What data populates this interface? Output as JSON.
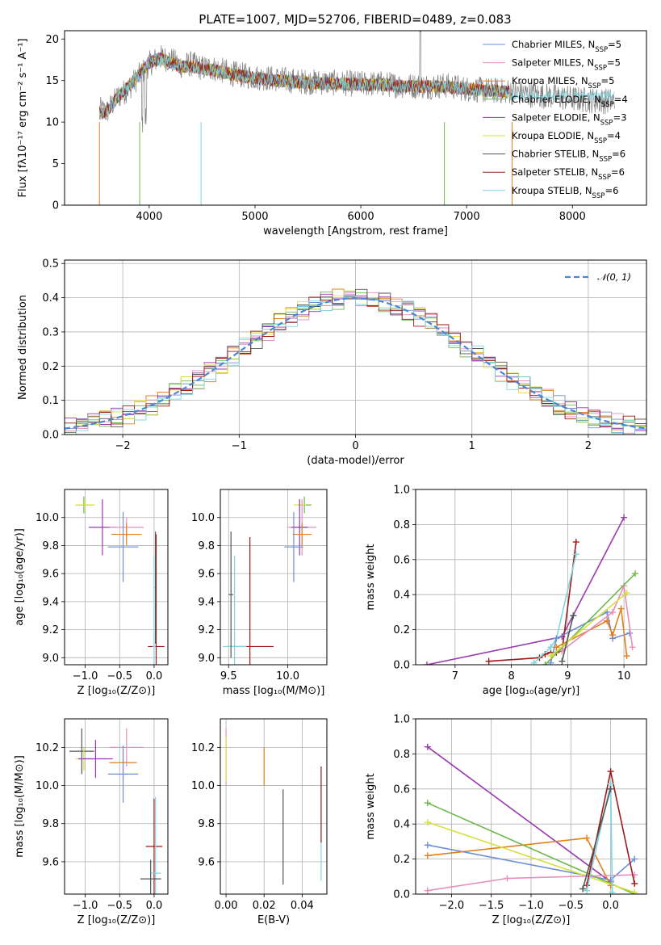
{
  "figure": {
    "title": "PLATE=1007, MJD=52706, FIBERID=0489, z=0.083"
  },
  "chart_data": [
    {
      "id": "spectrum",
      "type": "line",
      "title": "PLATE=1007, MJD=52706, FIBERID=0489, z=0.083",
      "xlabel": "wavelength [Angstrom, rest frame]",
      "ylabel": "Flux [fλ10⁻¹⁷ erg cm⁻² s⁻¹ A⁻¹]",
      "xlim": [
        3200,
        8700
      ],
      "ylim": [
        0,
        21
      ],
      "xticks": [
        4000,
        5000,
        6000,
        7000,
        8000
      ],
      "yticks": [
        0,
        5,
        10,
        15,
        20
      ],
      "grid": false,
      "legend_placement": "top-right",
      "data_spectrum": {
        "x": [
          3530,
          3600,
          3700,
          3800,
          3900,
          4000,
          4100,
          4200,
          4300,
          4400,
          4500,
          4600,
          4800,
          5000,
          5200,
          5400,
          5600,
          5800,
          6000,
          6200,
          6400,
          6600,
          6800,
          7000,
          7200,
          7400,
          7600,
          7800,
          8000,
          8200,
          8400
        ],
        "y": [
          11.5,
          11.2,
          13.0,
          14.0,
          15.5,
          17.0,
          17.8,
          17.5,
          16.8,
          17.0,
          16.5,
          16.5,
          15.8,
          15.4,
          15.2,
          14.9,
          14.8,
          14.7,
          14.6,
          14.6,
          14.4,
          14.3,
          14.4,
          14.0,
          13.8,
          13.7,
          13.3,
          13.1,
          12.8,
          12.6,
          12.5
        ]
      },
      "model_curve": {
        "x": [
          3530,
          3600,
          3700,
          3800,
          3900,
          4000,
          4100,
          4200,
          4300,
          4400,
          4500,
          4600,
          4800,
          5000,
          5200,
          5400,
          5600,
          5800,
          6000,
          6200,
          6400,
          6600,
          6800,
          7000,
          7200,
          7400
        ],
        "y": [
          11.0,
          11.3,
          13.0,
          14.2,
          15.6,
          17.2,
          17.6,
          17.2,
          16.6,
          16.7,
          16.4,
          16.3,
          15.7,
          15.3,
          15.0,
          14.8,
          14.7,
          14.6,
          14.5,
          14.5,
          14.3,
          14.3,
          14.3,
          14.0,
          13.8,
          13.6
        ]
      },
      "series": [
        {
          "name": "Chabrier MILES, N",
          "sub": "SSP",
          "suffix": "=5",
          "color": "#6e8fd8"
        },
        {
          "name": "Salpeter MILES, N",
          "sub": "SSP",
          "suffix": "=5",
          "color": "#e58fbb"
        },
        {
          "name": "Kroupa MILES, N",
          "sub": "SSP",
          "suffix": "=5",
          "color": "#e0801e"
        },
        {
          "name": "Chabrier ELODIE, N",
          "sub": "SSP",
          "suffix": "=4",
          "color": "#6db84a"
        },
        {
          "name": "Salpeter ELODIE, N",
          "sub": "SSP",
          "suffix": "=3",
          "color": "#9a3aaf"
        },
        {
          "name": "Kroupa ELODIE, N",
          "sub": "SSP",
          "suffix": "=4",
          "color": "#d8e03a"
        },
        {
          "name": "Chabrier STELIB, N",
          "sub": "SSP",
          "suffix": "=6",
          "color": "#555555"
        },
        {
          "name": "Salpeter STELIB, N",
          "sub": "SSP",
          "suffix": "=6",
          "color": "#a01818"
        },
        {
          "name": "Kroupa STELIB, N",
          "sub": "SSP",
          "suffix": "=6",
          "color": "#7fd6e0"
        }
      ]
    },
    {
      "id": "residuals",
      "type": "line",
      "xlabel": "(data-model)/error",
      "ylabel": "Normed distribution",
      "xlim": [
        -2.5,
        2.5
      ],
      "ylim": [
        0,
        0.51
      ],
      "xticks": [
        -2,
        -1,
        0,
        1,
        2
      ],
      "yticks": [
        0.0,
        0.1,
        0.2,
        0.3,
        0.4,
        0.5
      ],
      "grid": true,
      "legend_placement": "top-right",
      "reference": {
        "name": "𝒩(0, 1)",
        "color": "#4a86d8"
      }
    },
    {
      "id": "age_vs_z",
      "type": "scatter",
      "xlabel": "Z [log₁₀(Z/Z⊙)]",
      "ylabel": "age  [log₁₀(age/yr)]",
      "xlim": [
        -1.3,
        0.2
      ],
      "ylim": [
        8.95,
        10.2
      ],
      "xticks": [
        -1.0,
        -0.5,
        0.0
      ],
      "yticks": [
        9.0,
        9.2,
        9.4,
        9.6,
        9.8,
        10.0
      ],
      "grid": true,
      "points": [
        {
          "x": -1.02,
          "y": 10.09,
          "xerr": 0.12,
          "yerr": 0.06,
          "color": "#6db84a"
        },
        {
          "x": -1.0,
          "y": 10.09,
          "xerr": 0.14,
          "yerr": 0.04,
          "color": "#d8e03a"
        },
        {
          "x": -0.75,
          "y": 9.93,
          "xerr": 0.2,
          "yerr": 0.2,
          "color": "#9a3aaf"
        },
        {
          "x": -0.4,
          "y": 9.93,
          "xerr": 0.25,
          "yerr": 0.07,
          "color": "#e58fbb"
        },
        {
          "x": -0.4,
          "y": 9.88,
          "xerr": 0.22,
          "yerr": 0.08,
          "color": "#e0801e"
        },
        {
          "x": -0.45,
          "y": 9.79,
          "xerr": 0.22,
          "yerr": 0.25,
          "color": "#6e8fd8"
        },
        {
          "x": 0.03,
          "y": 9.08,
          "xerr": 0.12,
          "yerr": 0.8,
          "color": "#a01818"
        },
        {
          "x": 0.0,
          "y": 9.08,
          "xerr": 0.02,
          "yerr": 0.65,
          "color": "#7fd6e0"
        },
        {
          "x": 0.02,
          "y": 9.5,
          "xerr": 0.01,
          "yerr": 0.4,
          "color": "#555555"
        }
      ]
    },
    {
      "id": "age_vs_mass",
      "type": "scatter",
      "xlabel": "mass [log₁₀(M/M⊙)]",
      "ylabel": "",
      "xlim": [
        9.43,
        10.33
      ],
      "ylim": [
        8.95,
        10.2
      ],
      "xticks": [
        9.5,
        10.0
      ],
      "yticks": [
        9.0,
        9.2,
        9.4,
        9.6,
        9.8,
        10.0
      ],
      "grid": true,
      "points": [
        {
          "x": 10.14,
          "y": 10.09,
          "xerr": 0.06,
          "yerr": 0.06,
          "color": "#6db84a"
        },
        {
          "x": 10.1,
          "y": 10.09,
          "xerr": 0.05,
          "yerr": 0.04,
          "color": "#d8e03a"
        },
        {
          "x": 10.12,
          "y": 9.93,
          "xerr": 0.12,
          "yerr": 0.2,
          "color": "#e58fbb"
        },
        {
          "x": 10.1,
          "y": 9.93,
          "xerr": 0.07,
          "yerr": 0.2,
          "color": "#9a3aaf"
        },
        {
          "x": 10.12,
          "y": 9.88,
          "xerr": 0.08,
          "yerr": 0.08,
          "color": "#e0801e"
        },
        {
          "x": 10.05,
          "y": 9.79,
          "xerr": 0.08,
          "yerr": 0.25,
          "color": "#6e8fd8"
        },
        {
          "x": 9.68,
          "y": 9.08,
          "xerr": 0.2,
          "yerr": 0.78,
          "color": "#a01818"
        },
        {
          "x": 9.55,
          "y": 9.08,
          "xerr": 0.1,
          "yerr": 0.65,
          "color": "#7fd6e0"
        },
        {
          "x": 9.52,
          "y": 9.45,
          "xerr": 0.02,
          "yerr": 0.45,
          "color": "#555555"
        }
      ]
    },
    {
      "id": "weight_vs_age",
      "type": "line",
      "xlabel": "age  [log₁₀(age/yr)]",
      "ylabel": "mass weight",
      "xlim": [
        6.3,
        10.4
      ],
      "ylim": [
        0,
        1
      ],
      "xticks": [
        7,
        8,
        9,
        10
      ],
      "yticks": [
        0.0,
        0.2,
        0.4,
        0.6,
        0.8,
        1.0
      ],
      "grid": true,
      "series": [
        {
          "color": "#9a3aaf",
          "x": [
            6.5,
            8.9,
            10.0
          ],
          "y": [
            0.0,
            0.16,
            0.84
          ]
        },
        {
          "color": "#a01818",
          "x": [
            7.6,
            8.5,
            8.6,
            8.7,
            8.8,
            8.9,
            9.15
          ],
          "y": [
            0.02,
            0.04,
            0.06,
            0.07,
            0.07,
            0.08,
            0.7
          ]
        },
        {
          "color": "#7fd6e0",
          "x": [
            8.4,
            8.7,
            8.8,
            9.15
          ],
          "y": [
            0.01,
            0.1,
            0.15,
            0.63
          ]
        },
        {
          "color": "#6e8fd8",
          "x": [
            8.7,
            8.8,
            9.7,
            9.8,
            10.1
          ],
          "y": [
            0.01,
            0.15,
            0.3,
            0.15,
            0.18
          ]
        },
        {
          "color": "#e0801e",
          "x": [
            8.8,
            9.7,
            9.8,
            9.95,
            10.05
          ],
          "y": [
            0.1,
            0.25,
            0.17,
            0.32,
            0.05
          ]
        },
        {
          "color": "#e58fbb",
          "x": [
            8.9,
            9.8,
            10.0,
            10.15
          ],
          "y": [
            0.08,
            0.3,
            0.45,
            0.1
          ]
        },
        {
          "color": "#6db84a",
          "x": [
            8.6,
            10.2
          ],
          "y": [
            0.0,
            0.52
          ]
        },
        {
          "color": "#d8e03a",
          "x": [
            8.7,
            10.05
          ],
          "y": [
            0.05,
            0.41
          ]
        },
        {
          "color": "#555555",
          "x": [
            8.9,
            9.1
          ],
          "y": [
            0.02,
            0.28
          ]
        }
      ]
    },
    {
      "id": "mass_vs_z",
      "type": "scatter",
      "xlabel": "Z [log₁₀(Z/Z⊙)]",
      "ylabel": "mass [log₁₀(M/M⊙)]",
      "xlim": [
        -1.3,
        0.2
      ],
      "ylim": [
        9.43,
        10.35
      ],
      "xticks": [
        -1.0,
        -0.5,
        0.0
      ],
      "yticks": [
        9.6,
        9.8,
        10.0,
        10.2
      ],
      "grid": true,
      "points": [
        {
          "x": -1.05,
          "y": 10.18,
          "xerr": 0.18,
          "yerr": 0.12,
          "color": "#555555"
        },
        {
          "x": -1.02,
          "y": 10.14,
          "xerr": 0.12,
          "yerr": 0.06,
          "color": "#d8e03a"
        },
        {
          "x": -0.85,
          "y": 10.14,
          "xerr": 0.25,
          "yerr": 0.1,
          "color": "#9a3aaf"
        },
        {
          "x": -0.4,
          "y": 10.2,
          "xerr": 0.25,
          "yerr": 0.1,
          "color": "#e58fbb"
        },
        {
          "x": -0.45,
          "y": 10.12,
          "xerr": 0.2,
          "yerr": 0.08,
          "color": "#e0801e"
        },
        {
          "x": -0.45,
          "y": 10.06,
          "xerr": 0.22,
          "yerr": 0.15,
          "color": "#6e8fd8"
        },
        {
          "x": 0.0,
          "y": 9.68,
          "xerr": 0.12,
          "yerr": 0.25,
          "color": "#a01818"
        },
        {
          "x": 0.02,
          "y": 9.54,
          "xerr": 0.08,
          "yerr": 0.4,
          "color": "#7fd6e0"
        },
        {
          "x": -0.05,
          "y": 9.51,
          "xerr": 0.15,
          "yerr": 0.1,
          "color": "#555555"
        }
      ]
    },
    {
      "id": "mass_vs_ebv",
      "type": "scatter",
      "xlabel": "E(B-V)",
      "ylabel": "",
      "xlim": [
        -0.003,
        0.053
      ],
      "ylim": [
        9.43,
        10.35
      ],
      "xticks": [
        0.0,
        0.02,
        0.04
      ],
      "yticks": [
        9.6,
        9.8,
        10.0,
        10.2
      ],
      "grid": true,
      "points": [
        {
          "x": 0.0,
          "y": 10.15,
          "xerr": 0.0,
          "yerr": 0.15,
          "color": "#e58fbb"
        },
        {
          "x": 0.0,
          "y": 10.14,
          "xerr": 0.0,
          "yerr": 0.12,
          "color": "#d8e03a"
        },
        {
          "x": 0.02,
          "y": 10.1,
          "xerr": 0.0,
          "yerr": 0.1,
          "color": "#e0801e"
        },
        {
          "x": 0.03,
          "y": 9.73,
          "xerr": 0.0,
          "yerr": 0.25,
          "color": "#555555"
        },
        {
          "x": 0.05,
          "y": 9.8,
          "xerr": 0.0,
          "yerr": 0.3,
          "color": "#7fd6e0"
        },
        {
          "x": 0.05,
          "y": 9.9,
          "xerr": 0.0,
          "yerr": 0.2,
          "color": "#a01818"
        }
      ]
    },
    {
      "id": "weight_vs_z",
      "type": "line",
      "xlabel": "Z [log₁₀(Z/Z⊙)]",
      "ylabel": "mass weight",
      "xlim": [
        -2.45,
        0.45
      ],
      "ylim": [
        0,
        1
      ],
      "xticks": [
        -2.0,
        -1.5,
        -1.0,
        -0.5,
        0.0
      ],
      "yticks": [
        0.0,
        0.2,
        0.4,
        0.6,
        0.8,
        1.0
      ],
      "grid": true,
      "series": [
        {
          "color": "#9a3aaf",
          "x": [
            -2.3,
            0.0
          ],
          "y": [
            0.84,
            0.07
          ]
        },
        {
          "color": "#6e8fd8",
          "x": [
            -2.3,
            0.0,
            0.3
          ],
          "y": [
            0.28,
            0.08,
            0.2
          ]
        },
        {
          "color": "#e0801e",
          "x": [
            -2.3,
            -0.3,
            0.0
          ],
          "y": [
            0.22,
            0.32,
            0.05
          ]
        },
        {
          "color": "#6db84a",
          "x": [
            -2.3,
            0.3
          ],
          "y": [
            0.52,
            0.0
          ]
        },
        {
          "color": "#d8e03a",
          "x": [
            -2.3,
            0.3
          ],
          "y": [
            0.41,
            0.01
          ]
        },
        {
          "color": "#e58fbb",
          "x": [
            -2.3,
            -1.3,
            0.3
          ],
          "y": [
            0.02,
            0.09,
            0.11
          ]
        },
        {
          "color": "#a01818",
          "x": [
            -0.3,
            0.0,
            0.3
          ],
          "y": [
            0.05,
            0.7,
            0.06
          ]
        },
        {
          "color": "#7fd6e0",
          "x": [
            -0.3,
            0.0,
            0.02
          ],
          "y": [
            0.02,
            0.63,
            0.01
          ]
        },
        {
          "color": "#555555",
          "x": [
            -0.35,
            0.0
          ],
          "y": [
            0.03,
            0.6
          ]
        }
      ]
    }
  ]
}
